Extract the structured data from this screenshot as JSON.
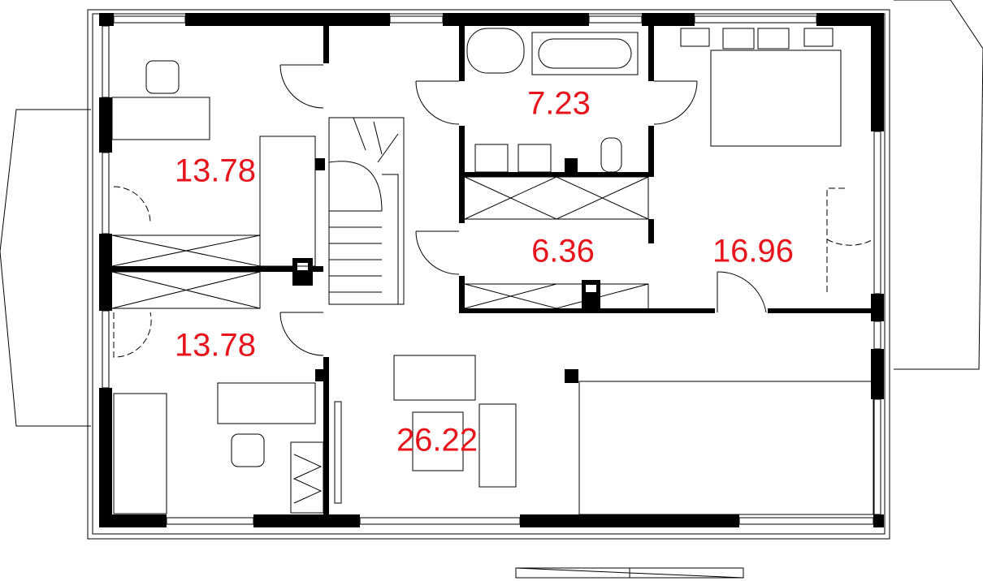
{
  "rooms": [
    {
      "area": "13.78"
    },
    {
      "area": "13.78"
    },
    {
      "area": "7.23"
    },
    {
      "area": "6.36"
    },
    {
      "area": "16.96"
    },
    {
      "area": "26.22"
    }
  ]
}
